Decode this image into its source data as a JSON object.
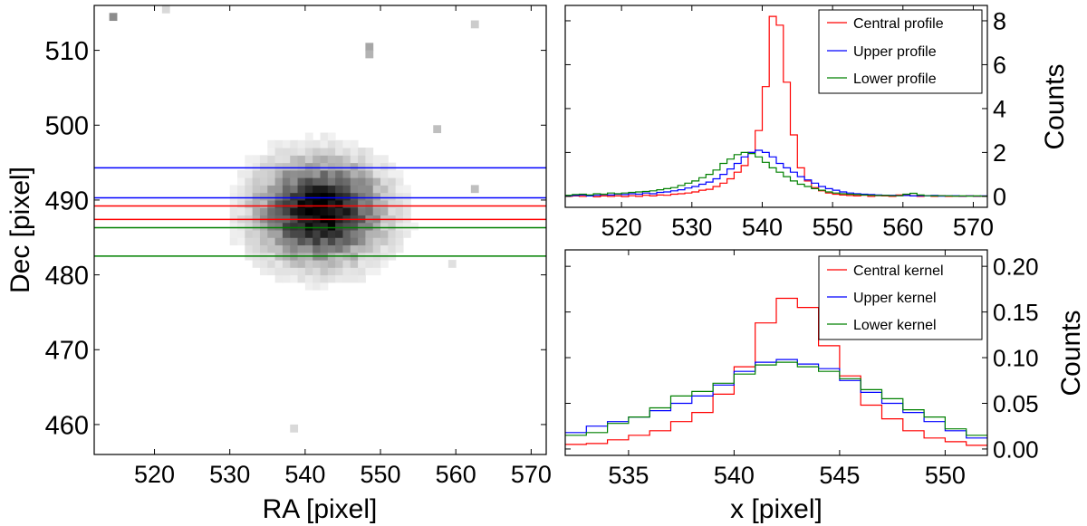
{
  "chart_data": [
    {
      "type": "heatmap",
      "xlabel": "RA [pixel]",
      "ylabel": "Dec [pixel]",
      "xlim": [
        512,
        572
      ],
      "ylim": [
        456,
        516
      ],
      "xticks": [
        "520",
        "530",
        "540",
        "550",
        "560",
        "570"
      ],
      "yticks": [
        "460",
        "470",
        "480",
        "490",
        "500",
        "510"
      ],
      "colormap": "gray_r",
      "blob_center": [
        542,
        488.5
      ],
      "blob_radius": [
        11,
        9
      ],
      "speckles": [
        [
          514,
          514.5,
          0.45
        ],
        [
          521,
          515,
          0.15
        ],
        [
          548,
          510.5,
          0.35
        ],
        [
          548,
          509.5,
          0.3
        ],
        [
          557,
          499.5,
          0.25
        ],
        [
          562,
          513.5,
          0.2
        ],
        [
          562,
          491,
          0.25
        ],
        [
          559,
          481.5,
          0.12
        ],
        [
          538,
          459,
          0.15
        ]
      ],
      "horizontal_lines": [
        {
          "y": 494.3,
          "color": "#0000ff"
        },
        {
          "y": 490.3,
          "color": "#0000ff"
        },
        {
          "y": 489.2,
          "color": "#ff0000"
        },
        {
          "y": 487.4,
          "color": "#ff0000"
        },
        {
          "y": 486.3,
          "color": "#008000"
        },
        {
          "y": 482.5,
          "color": "#008000"
        }
      ]
    },
    {
      "type": "line",
      "step": true,
      "xlabel": "",
      "ylabel": "Counts",
      "xlim": [
        512,
        572
      ],
      "ylim": [
        -0.5,
        8.7
      ],
      "xticks": [
        "520",
        "530",
        "540",
        "550",
        "560",
        "570"
      ],
      "yticks": [
        "0",
        "2",
        "4",
        "6",
        "8"
      ],
      "legend_position": "top-right",
      "x": [
        512,
        513,
        514,
        515,
        516,
        517,
        518,
        519,
        520,
        521,
        522,
        523,
        524,
        525,
        526,
        527,
        528,
        529,
        530,
        531,
        532,
        533,
        534,
        535,
        536,
        537,
        538,
        539,
        540,
        541,
        542,
        543,
        544,
        545,
        546,
        547,
        548,
        549,
        550,
        551,
        552,
        553,
        554,
        555,
        556,
        557,
        558,
        559,
        560,
        561,
        562,
        563,
        564,
        565,
        566,
        567,
        568,
        569,
        570,
        571
      ],
      "series": [
        {
          "name": "Central profile",
          "color": "#ff0000",
          "values": [
            0,
            0.02,
            0,
            0.03,
            -0.02,
            0.02,
            0,
            0.02,
            -0.01,
            0.03,
            0,
            0.05,
            0.02,
            0.06,
            0.05,
            0.1,
            0.12,
            0.15,
            0.2,
            0.28,
            0.32,
            0.45,
            0.6,
            0.8,
            1.1,
            1.4,
            2.0,
            3.0,
            5.0,
            8.2,
            7.8,
            5.2,
            2.8,
            1.3,
            0.7,
            0.4,
            0.25,
            0.15,
            0.1,
            0.06,
            0.04,
            0.02,
            0.05,
            0,
            0.03,
            0.02,
            0,
            0.06,
            0.08,
            0.02,
            0,
            0.02,
            0,
            0.03,
            0,
            0.01,
            0,
            0.02,
            0,
            0.01
          ]
        },
        {
          "name": "Upper profile",
          "color": "#0000ff",
          "values": [
            0.02,
            0.04,
            0.06,
            0.02,
            0.05,
            0.08,
            0.06,
            0.1,
            0.08,
            0.12,
            0.1,
            0.15,
            0.12,
            0.18,
            0.2,
            0.25,
            0.3,
            0.38,
            0.45,
            0.55,
            0.65,
            0.8,
            1.0,
            1.25,
            1.5,
            1.8,
            2.0,
            2.1,
            2.0,
            1.8,
            1.5,
            1.3,
            1.1,
            0.9,
            0.75,
            0.6,
            0.45,
            0.35,
            0.28,
            0.2,
            0.15,
            0.12,
            0.1,
            0.08,
            0.06,
            0.05,
            0.05,
            0.03,
            0.04,
            0.02,
            0.03,
            0.02,
            0.04,
            0.01,
            0.02,
            0.03,
            0.01,
            0.02,
            0.01,
            0.02
          ]
        },
        {
          "name": "Lower profile",
          "color": "#008000",
          "values": [
            0.05,
            0.08,
            0.1,
            0.06,
            0.12,
            0.1,
            0.15,
            0.12,
            0.15,
            0.18,
            0.2,
            0.22,
            0.25,
            0.3,
            0.35,
            0.4,
            0.5,
            0.6,
            0.7,
            0.85,
            1.0,
            1.2,
            1.5,
            1.7,
            1.9,
            2.0,
            1.95,
            1.8,
            1.55,
            1.3,
            1.1,
            0.9,
            0.7,
            0.55,
            0.45,
            0.35,
            0.28,
            0.2,
            0.15,
            0.12,
            0.1,
            0.08,
            0.06,
            0.05,
            0.04,
            0.04,
            0.03,
            0.03,
            0.1,
            0.14,
            0.06,
            0.03,
            0.02,
            0.03,
            0.02,
            0.01,
            0.02,
            0.01,
            0.02,
            0.01
          ]
        }
      ]
    },
    {
      "type": "line",
      "step": true,
      "xlabel": "x [pixel]",
      "ylabel": "Counts",
      "xlim": [
        532,
        552
      ],
      "ylim": [
        -0.007,
        0.218
      ],
      "xticks": [
        "535",
        "540",
        "545",
        "550"
      ],
      "yticks": [
        "0.00",
        "0.05",
        "0.10",
        "0.15",
        "0.20"
      ],
      "legend_position": "top-right",
      "x": [
        532,
        533,
        534,
        535,
        536,
        537,
        538,
        539,
        540,
        541,
        542,
        543,
        544,
        545,
        546,
        547,
        548,
        549,
        550,
        551
      ],
      "series": [
        {
          "name": "Central kernel",
          "color": "#ff0000",
          "values": [
            0.005,
            0.006,
            0.01,
            0.015,
            0.02,
            0.03,
            0.04,
            0.06,
            0.09,
            0.138,
            0.165,
            0.155,
            0.113,
            0.08,
            0.048,
            0.033,
            0.02,
            0.012,
            0.008,
            0.004
          ]
        },
        {
          "name": "Upper kernel",
          "color": "#0000ff",
          "values": [
            0.018,
            0.025,
            0.03,
            0.035,
            0.042,
            0.05,
            0.058,
            0.07,
            0.085,
            0.095,
            0.098,
            0.093,
            0.088,
            0.075,
            0.062,
            0.05,
            0.04,
            0.03,
            0.02,
            0.012
          ]
        },
        {
          "name": "Lower kernel",
          "color": "#008000",
          "values": [
            0.015,
            0.018,
            0.028,
            0.035,
            0.045,
            0.058,
            0.063,
            0.072,
            0.082,
            0.092,
            0.095,
            0.09,
            0.085,
            0.077,
            0.065,
            0.055,
            0.043,
            0.035,
            0.022,
            0.015
          ]
        }
      ]
    }
  ]
}
